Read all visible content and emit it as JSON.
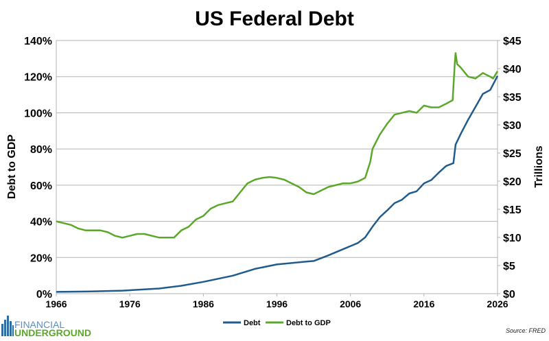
{
  "chart_data": {
    "type": "line",
    "title": "US Federal Debt",
    "ylabel_left": "Debt to GDP",
    "ylabel_right": "Trillions",
    "xlim": [
      1966,
      2026
    ],
    "ylim_left": [
      0,
      140
    ],
    "ylim_right": [
      0,
      45
    ],
    "x_ticks": [
      "1966",
      "1976",
      "1986",
      "1996",
      "2006",
      "2016",
      "2026"
    ],
    "y_ticks_left": [
      "0%",
      "20%",
      "40%",
      "60%",
      "80%",
      "100%",
      "120%",
      "140%"
    ],
    "y_ticks_right": [
      "$0",
      "$5",
      "$10",
      "$15",
      "$20",
      "$25",
      "$30",
      "$35",
      "$40",
      "$45"
    ],
    "grid": "horizontal",
    "legend": "bottom",
    "series": [
      {
        "name": "Debt",
        "axis": "right",
        "color": "#1f5b8c",
        "x": [
          1966,
          1970,
          1975,
          1980,
          1983,
          1986,
          1990,
          1993,
          1996,
          2000,
          2001,
          2003,
          2005,
          2007,
          2008,
          2009,
          2010,
          2011,
          2012,
          2013,
          2014,
          2015,
          2016,
          2017,
          2018,
          2019,
          2020,
          2020.3,
          2021,
          2022,
          2023,
          2024,
          2025,
          2026
        ],
        "y": [
          0.32,
          0.38,
          0.54,
          0.91,
          1.4,
          2.1,
          3.2,
          4.4,
          5.2,
          5.7,
          5.8,
          6.8,
          7.9,
          9.0,
          10.0,
          11.9,
          13.6,
          14.8,
          16.1,
          16.7,
          17.8,
          18.2,
          19.6,
          20.2,
          21.5,
          22.7,
          23.2,
          26.5,
          28.4,
          30.9,
          33.2,
          35.5,
          36.2,
          38.7
        ]
      },
      {
        "name": "Debt to GDP",
        "axis": "left",
        "color": "#5ba829",
        "x": [
          1966,
          1967,
          1968,
          1969,
          1970,
          1971,
          1972,
          1973,
          1974,
          1975,
          1976,
          1977,
          1978,
          1979,
          1980,
          1981,
          1982,
          1983,
          1984,
          1985,
          1986,
          1987,
          1988,
          1989,
          1990,
          1991,
          1992,
          1993,
          1994,
          1995,
          1996,
          1997,
          1998,
          1999,
          2000,
          2001,
          2002,
          2003,
          2004,
          2005,
          2006,
          2007,
          2008,
          2008.7,
          2009,
          2010,
          2011,
          2012,
          2013,
          2014,
          2015,
          2016,
          2017,
          2018,
          2019,
          2019.9,
          2020.2,
          2020.3,
          2020.5,
          2021,
          2022,
          2023,
          2024,
          2025,
          2025.4,
          2026
        ],
        "y": [
          40,
          39,
          38,
          36,
          35,
          35,
          35,
          34,
          32,
          31,
          32,
          33,
          33,
          32,
          31,
          31,
          31,
          35,
          37,
          41,
          43,
          47,
          49,
          50,
          51,
          56,
          61,
          63,
          64,
          64.5,
          64,
          63,
          61,
          59,
          56,
          55,
          57,
          59,
          60,
          61,
          61,
          62,
          64,
          73,
          80,
          88,
          94,
          99,
          100,
          101,
          100,
          104,
          103,
          103,
          105,
          107,
          128,
          133,
          127,
          125,
          120,
          119,
          122,
          120,
          119,
          123
        ]
      }
    ]
  },
  "branding": {
    "logo_line1": "FINANCIAL",
    "logo_line2": "UNDERGROUND"
  },
  "source": "Source: FRED"
}
